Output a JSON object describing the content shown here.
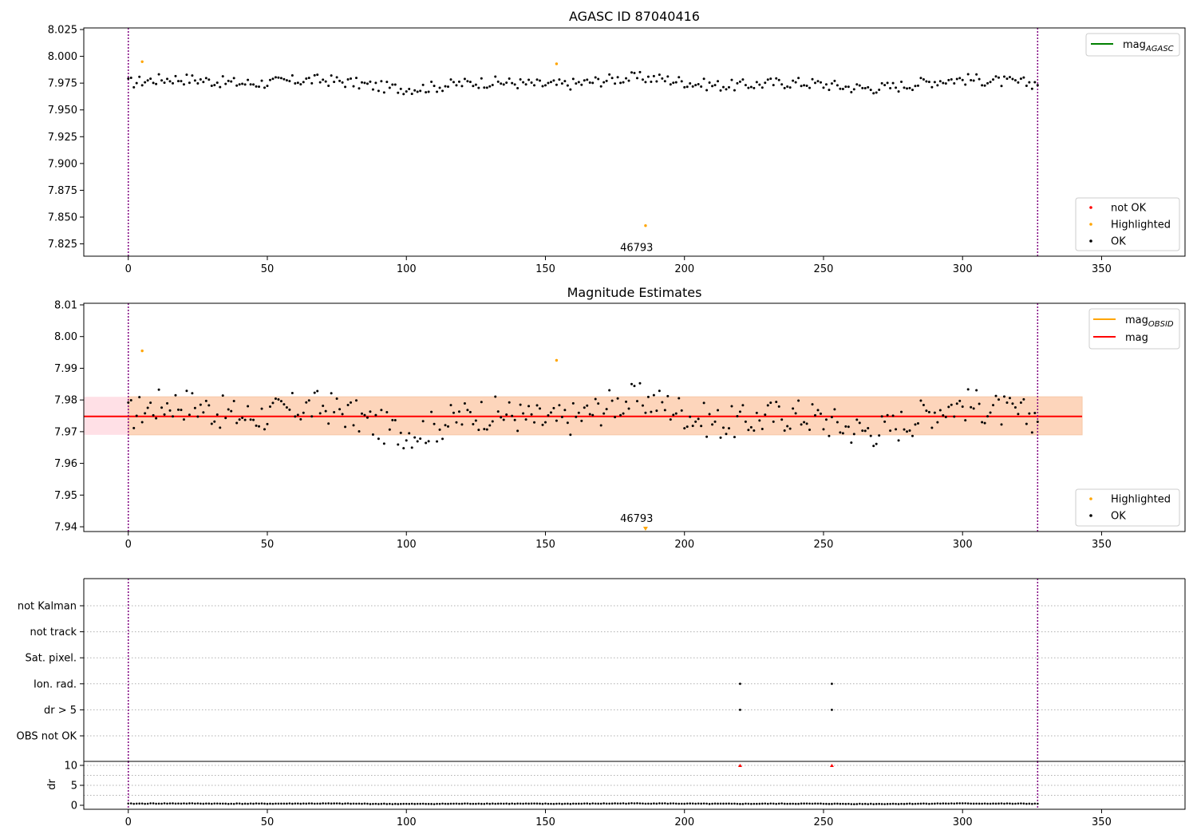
{
  "chart_data": [
    {
      "type": "scatter",
      "title": "AGASC ID 87040416",
      "xlim": [
        -16,
        380
      ],
      "ylim": [
        7.8135,
        8.0265
      ],
      "xticks": [
        0,
        50,
        100,
        150,
        200,
        250,
        300,
        350
      ],
      "yticks": [
        7.825,
        7.85,
        7.875,
        7.9,
        7.925,
        7.95,
        7.975,
        8.0,
        8.025
      ],
      "ytick_labels": [
        "7.825",
        "7.850",
        "7.875",
        "7.900",
        "7.925",
        "7.950",
        "7.975",
        "8.000",
        "8.025"
      ],
      "vlines": [
        0,
        327
      ],
      "annotation": {
        "text": "46793",
        "x": 163,
        "y": 7.8185
      },
      "line_legend": [
        {
          "label": "mag",
          "sub": "AGASC",
          "color": "#008000"
        }
      ],
      "marker_legend": [
        {
          "label": "not OK",
          "color": "#ff0000"
        },
        {
          "label": "Highlighted",
          "color": "#ffa500"
        },
        {
          "label": "OK",
          "color": "#000000"
        }
      ],
      "highlighted": [
        [
          5,
          7.995
        ],
        [
          154,
          7.993
        ],
        [
          186,
          7.842
        ]
      ],
      "series_ok": {
        "n": 327,
        "mean": 7.975,
        "amp": 0.012
      }
    },
    {
      "type": "scatter",
      "title": "Magnitude Estimates",
      "xlim": [
        -16,
        380
      ],
      "ylim": [
        7.9385,
        8.0105
      ],
      "xticks": [
        0,
        50,
        100,
        150,
        200,
        250,
        300,
        350
      ],
      "yticks": [
        7.94,
        7.95,
        7.96,
        7.97,
        7.98,
        7.99,
        8.0,
        8.01
      ],
      "ytick_labels": [
        "7.94",
        "7.95",
        "7.96",
        "7.97",
        "7.98",
        "7.99",
        "8.00",
        "8.01"
      ],
      "vlines": [
        0,
        327
      ],
      "annotation": {
        "text": "46793",
        "x": 163,
        "y": 7.9415
      },
      "band_outer": {
        "x0": -16,
        "x1": 343,
        "y0": 7.969,
        "y1": 7.981,
        "color": "#ffe0e6"
      },
      "band_inner": {
        "x0": 0,
        "x1": 343,
        "y0": 7.969,
        "y1": 7.981,
        "color": "#fdd5bb"
      },
      "mag_line": {
        "value": 7.9748,
        "x0": -16,
        "x1": 343,
        "color": "#ff0000"
      },
      "line_legend": [
        {
          "label": "mag",
          "sub": "OBSID",
          "color": "#ffa500"
        },
        {
          "label": "mag",
          "sub": "",
          "color": "#ff0000"
        }
      ],
      "marker_legend": [
        {
          "label": "Highlighted",
          "color": "#ffa500"
        },
        {
          "label": "OK",
          "color": "#000000"
        }
      ],
      "highlighted": [
        [
          5,
          7.9955
        ],
        [
          154,
          7.9925
        ]
      ],
      "out_of_range_marker": {
        "x": 186,
        "color": "#ffa500"
      },
      "series_ok": {
        "n": 327,
        "mean": 7.975,
        "amp": 0.012
      }
    },
    {
      "type": "scatter",
      "title": "",
      "xlim": [
        -16,
        380
      ],
      "vlines": [
        0,
        327
      ],
      "flag_rows": [
        "not Kalman",
        "not track",
        "Sat. pixel.",
        "Ion. rad.",
        "dr > 5",
        "OBS not OK"
      ],
      "flag_points": [
        {
          "row": "Ion. rad.",
          "x": 220
        },
        {
          "row": "Ion. rad.",
          "x": 253
        },
        {
          "row": "dr > 5",
          "x": 220
        },
        {
          "row": "dr > 5",
          "x": 253
        }
      ]
    },
    {
      "type": "scatter",
      "title": "",
      "ylabel": "dr",
      "xlim": [
        -16,
        380
      ],
      "ylim": [
        -1,
        11
      ],
      "xticks": [
        0,
        50,
        100,
        150,
        200,
        250,
        300,
        350
      ],
      "yticks": [
        0,
        5,
        10
      ],
      "vlines": [
        0,
        327
      ],
      "clipped_points": [
        [
          220,
          10
        ],
        [
          253,
          10
        ]
      ],
      "series_ok": {
        "n": 327,
        "mean": 0.4,
        "amp": 0.15
      }
    }
  ],
  "colors": {
    "vline": "#800080",
    "grid": "#b0b0b0",
    "spine": "#000000"
  }
}
